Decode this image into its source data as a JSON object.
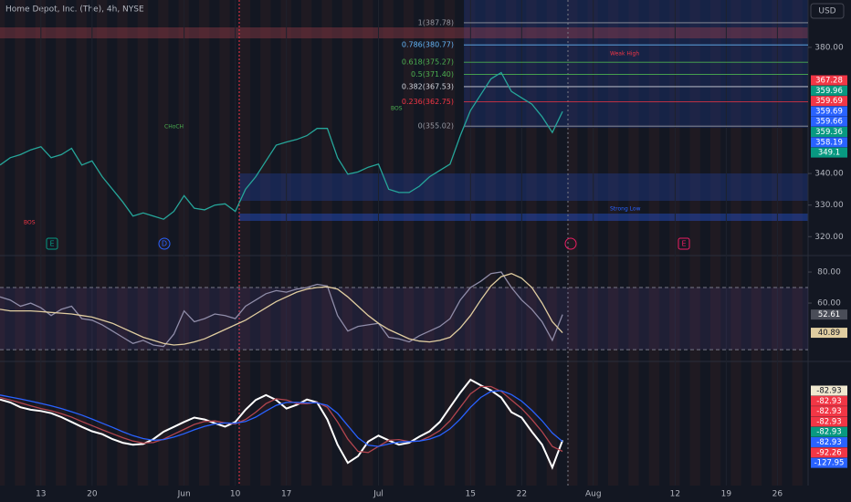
{
  "chart_data": [
    {
      "type": "line",
      "title": "Home Depot, Inc. (The), 4h, NYSE",
      "currency": "USD",
      "x": [
        -4,
        -3,
        -2,
        -1,
        0,
        1,
        2,
        3,
        4,
        5,
        6,
        7,
        8,
        9,
        10,
        11,
        12,
        13,
        14,
        15,
        16,
        17,
        18,
        19,
        20,
        21,
        22,
        23,
        24,
        25,
        26,
        27,
        28,
        29,
        30,
        31,
        32,
        33,
        34,
        35,
        36,
        37,
        38,
        39,
        40,
        41,
        42,
        43,
        44,
        45,
        46,
        47,
        48,
        49,
        50,
        51
      ],
      "xlim": [
        -4,
        75
      ],
      "xticks": [
        {
          "value": 0,
          "label": "13"
        },
        {
          "value": 5,
          "label": "20"
        },
        {
          "value": 14,
          "label": "Jun"
        },
        {
          "value": 19,
          "label": "10"
        },
        {
          "value": 24,
          "label": "17"
        },
        {
          "value": 33,
          "label": "Jul"
        },
        {
          "value": 42,
          "label": "15"
        },
        {
          "value": 47,
          "label": "22"
        },
        {
          "value": 54,
          "label": "Aug"
        },
        {
          "value": 62,
          "label": "12"
        },
        {
          "value": 67,
          "label": "19"
        },
        {
          "value": 72,
          "label": "26"
        }
      ],
      "ylim": [
        314,
        395
      ],
      "yticks": [
        {
          "value": 380,
          "label": "380.00"
        },
        {
          "value": 340,
          "label": "340.00"
        },
        {
          "value": 330,
          "label": "330.00"
        },
        {
          "value": 320,
          "label": "320.00"
        }
      ],
      "series": [
        {
          "color": "#26a69a",
          "values": [
            342.7,
            345,
            346,
            347.5,
            348.5,
            345,
            346,
            348,
            342.7,
            344,
            339,
            335,
            331,
            326.5,
            327.5,
            326.5,
            325.5,
            328,
            333,
            329,
            328.5,
            330,
            330.4,
            328,
            335,
            339,
            344,
            349,
            350,
            350.8,
            352,
            354.3,
            354.3,
            345,
            339.8,
            340.5,
            342,
            343,
            335,
            334,
            334,
            336,
            339,
            341,
            343,
            352,
            360,
            365,
            370,
            372,
            366,
            364,
            362,
            358,
            353,
            359.69
          ]
        }
      ],
      "fib_levels": [
        {
          "value": 387.78,
          "label": "1(387.78)",
          "color": "#9598a1"
        },
        {
          "value": 380.77,
          "label": "0.786(380.77)",
          "color": "#64b5f6"
        },
        {
          "value": 375.27,
          "label": "0.618(375.27)",
          "color": "#4caf50"
        },
        {
          "value": 371.4,
          "label": "0.5(371.40)",
          "color": "#4caf50"
        },
        {
          "value": 367.53,
          "label": "0.382(367.53)",
          "color": "#d1d4dc"
        },
        {
          "value": 362.75,
          "label": "0.236(362.75)",
          "color": "#f23645"
        },
        {
          "value": 355.02,
          "label": "0(355.02)",
          "color": "#9598a1"
        }
      ],
      "price_labels": [
        367.28,
        359.96,
        359.69,
        359.69,
        359.66,
        359.36,
        358.19,
        349.1
      ],
      "price_label_colors": [
        "#f23645",
        "#089981",
        "#f23645",
        "#2962ff",
        "#2962ff",
        "#089981",
        "#2962ff",
        "#089981"
      ],
      "annotations": [
        "BOS",
        "CHoCH",
        "BOS",
        "Weak High",
        "Strong Low",
        "E",
        "D",
        "E"
      ]
    },
    {
      "type": "line",
      "ylim": [
        23,
        90.6
      ],
      "yticks": [
        {
          "value": 80,
          "label": "80.00"
        },
        {
          "value": 60,
          "label": "60.00"
        }
      ],
      "band": [
        30,
        70
      ],
      "series": [
        {
          "color": "#8f8ca8",
          "values": [
            64,
            62,
            58,
            60,
            57,
            52,
            56,
            58,
            50,
            49,
            46,
            42,
            38,
            34,
            36,
            33,
            32,
            40,
            55,
            48,
            50,
            53,
            52,
            50,
            58,
            62,
            66,
            68,
            67,
            69,
            70,
            72,
            71,
            52,
            42,
            45,
            46,
            47,
            38,
            37,
            35,
            39,
            42,
            45,
            50,
            62,
            70,
            74,
            79,
            80,
            70,
            62,
            56,
            48,
            36,
            52.61
          ]
        },
        {
          "color": "#e0cda0",
          "values": [
            56,
            55,
            55,
            55,
            54.5,
            54,
            53.5,
            53,
            52,
            51,
            49,
            47,
            44,
            41,
            38,
            36,
            34,
            33,
            33.5,
            35,
            37,
            40,
            43,
            46,
            49,
            53,
            57,
            61,
            64,
            67,
            69,
            70,
            70.5,
            69,
            64,
            58,
            52,
            47,
            43,
            40,
            37,
            35.5,
            35,
            36,
            38,
            44,
            52,
            62,
            71,
            77,
            79,
            76,
            70,
            60,
            48,
            40.89
          ]
        }
      ]
    },
    {
      "type": "line",
      "ylim": [
        -300,
        200
      ],
      "series": [
        {
          "color": "#ffffff",
          "values": [
            52,
            40,
            20,
            10,
            5,
            -4,
            -20,
            -40,
            -60,
            -78,
            -90,
            -110,
            -125,
            -133,
            -130,
            -110,
            -80,
            -60,
            -40,
            -22,
            -30,
            -45,
            -59,
            -40,
            10,
            50,
            70,
            50,
            15,
            30,
            52,
            40,
            -30,
            -133,
            -207,
            -180,
            -120,
            -96,
            -115,
            -133,
            -125,
            -100,
            -78,
            -40,
            20,
            80,
            133,
            110,
            89,
            60,
            0,
            -22,
            -80,
            -133,
            -226,
            -115
          ]
        },
        {
          "color": "#b2454f",
          "values": [
            60,
            50,
            38,
            26,
            15,
            6,
            -6,
            -20,
            -38,
            -55,
            -72,
            -88,
            -104,
            -118,
            -126,
            -124,
            -110,
            -90,
            -70,
            -50,
            -38,
            -36,
            -44,
            -48,
            -30,
            0,
            35,
            55,
            50,
            35,
            35,
            40,
            20,
            -40,
            -110,
            -160,
            -165,
            -140,
            -115,
            -112,
            -120,
            -118,
            -100,
            -75,
            -35,
            20,
            75,
            105,
            105,
            85,
            50,
            15,
            -30,
            -80,
            -140,
            -160
          ]
        },
        {
          "color": "#2962ff",
          "values": [
            70,
            62,
            54,
            45,
            36,
            26,
            15,
            2,
            -12,
            -28,
            -45,
            -62,
            -80,
            -96,
            -108,
            -115,
            -112,
            -102,
            -88,
            -72,
            -58,
            -48,
            -44,
            -45,
            -38,
            -20,
            5,
            28,
            40,
            40,
            38,
            38,
            28,
            -5,
            -55,
            -105,
            -135,
            -140,
            -130,
            -122,
            -120,
            -118,
            -110,
            -95,
            -68,
            -28,
            20,
            60,
            85,
            88,
            72,
            45,
            8,
            -35,
            -85,
            -120
          ]
        }
      ],
      "value_labels": [
        -82.93,
        -82.93,
        -82.93,
        -82.93,
        -82.93,
        -82.93,
        -92.26,
        -127.95
      ],
      "value_label_colors": [
        "#f0e8d0",
        "#f23645",
        "#f23645",
        "#f23645",
        "#089981",
        "#2962ff",
        "#f23645",
        "#2962ff"
      ]
    }
  ]
}
